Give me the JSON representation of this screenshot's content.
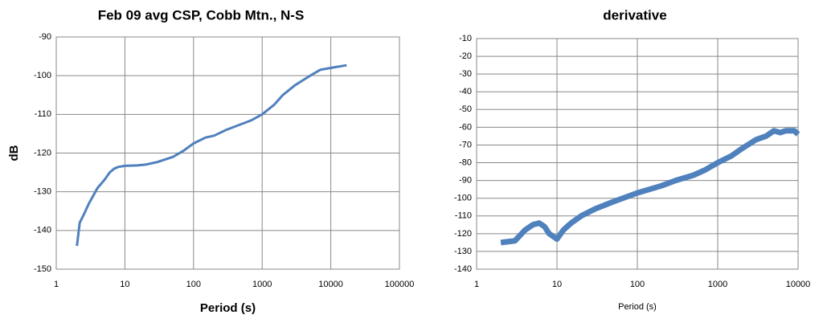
{
  "chart_data": [
    {
      "type": "line",
      "title": "Feb 09 avg CSP, Cobb Mtn., N-S",
      "x_label": "Period (s)",
      "y_label": "dB",
      "log_x": true,
      "grid": true,
      "color": "#4f81bd",
      "xlim": [
        1,
        100000
      ],
      "xticks": [
        1,
        10,
        100,
        1000,
        10000,
        100000
      ],
      "ylim": [
        -150,
        -90
      ],
      "yticks": [
        -150,
        -140,
        -130,
        -120,
        -110,
        -100,
        -90
      ],
      "x": [
        2,
        2.2,
        2.5,
        3,
        4,
        5,
        6,
        7,
        8,
        10,
        15,
        20,
        30,
        50,
        70,
        100,
        150,
        200,
        300,
        500,
        700,
        1000,
        1500,
        2000,
        3000,
        5000,
        7000,
        10000,
        17000
      ],
      "values": [
        -144,
        -138,
        -136,
        -133,
        -129,
        -127,
        -125,
        -124,
        -123.6,
        -123.3,
        -123.2,
        -123,
        -122.3,
        -121,
        -119.5,
        -117.5,
        -116,
        -115.5,
        -114,
        -112.5,
        -111.5,
        -110,
        -107.5,
        -105,
        -102.5,
        -100,
        -98.5,
        -98,
        -97.3
      ]
    },
    {
      "type": "line",
      "title": "derivative",
      "x_label": "Period (s)",
      "log_x": true,
      "grid": true,
      "color": "#4f81bd",
      "xlim": [
        1,
        10000
      ],
      "xticks": [
        1,
        10,
        100,
        1000,
        10000
      ],
      "ylim": [
        -140,
        -10
      ],
      "yticks": [
        -140,
        -130,
        -120,
        -110,
        -100,
        -90,
        -80,
        -70,
        -60,
        -50,
        -40,
        -30,
        -20,
        -10
      ],
      "x": [
        2,
        3,
        4,
        5,
        6,
        7,
        8,
        10,
        12,
        15,
        20,
        30,
        50,
        100,
        200,
        300,
        500,
        700,
        1000,
        1500,
        2000,
        3000,
        4000,
        5000,
        6000,
        7000,
        9000,
        10000
      ],
      "values": [
        -125,
        -124,
        -118,
        -115,
        -114,
        -116,
        -120,
        -123,
        -118,
        -114,
        -110,
        -106,
        -102,
        -97,
        -93,
        -90,
        -87,
        -84,
        -80,
        -76,
        -72,
        -67,
        -65,
        -62,
        -63,
        -62,
        -62,
        -64
      ]
    }
  ]
}
